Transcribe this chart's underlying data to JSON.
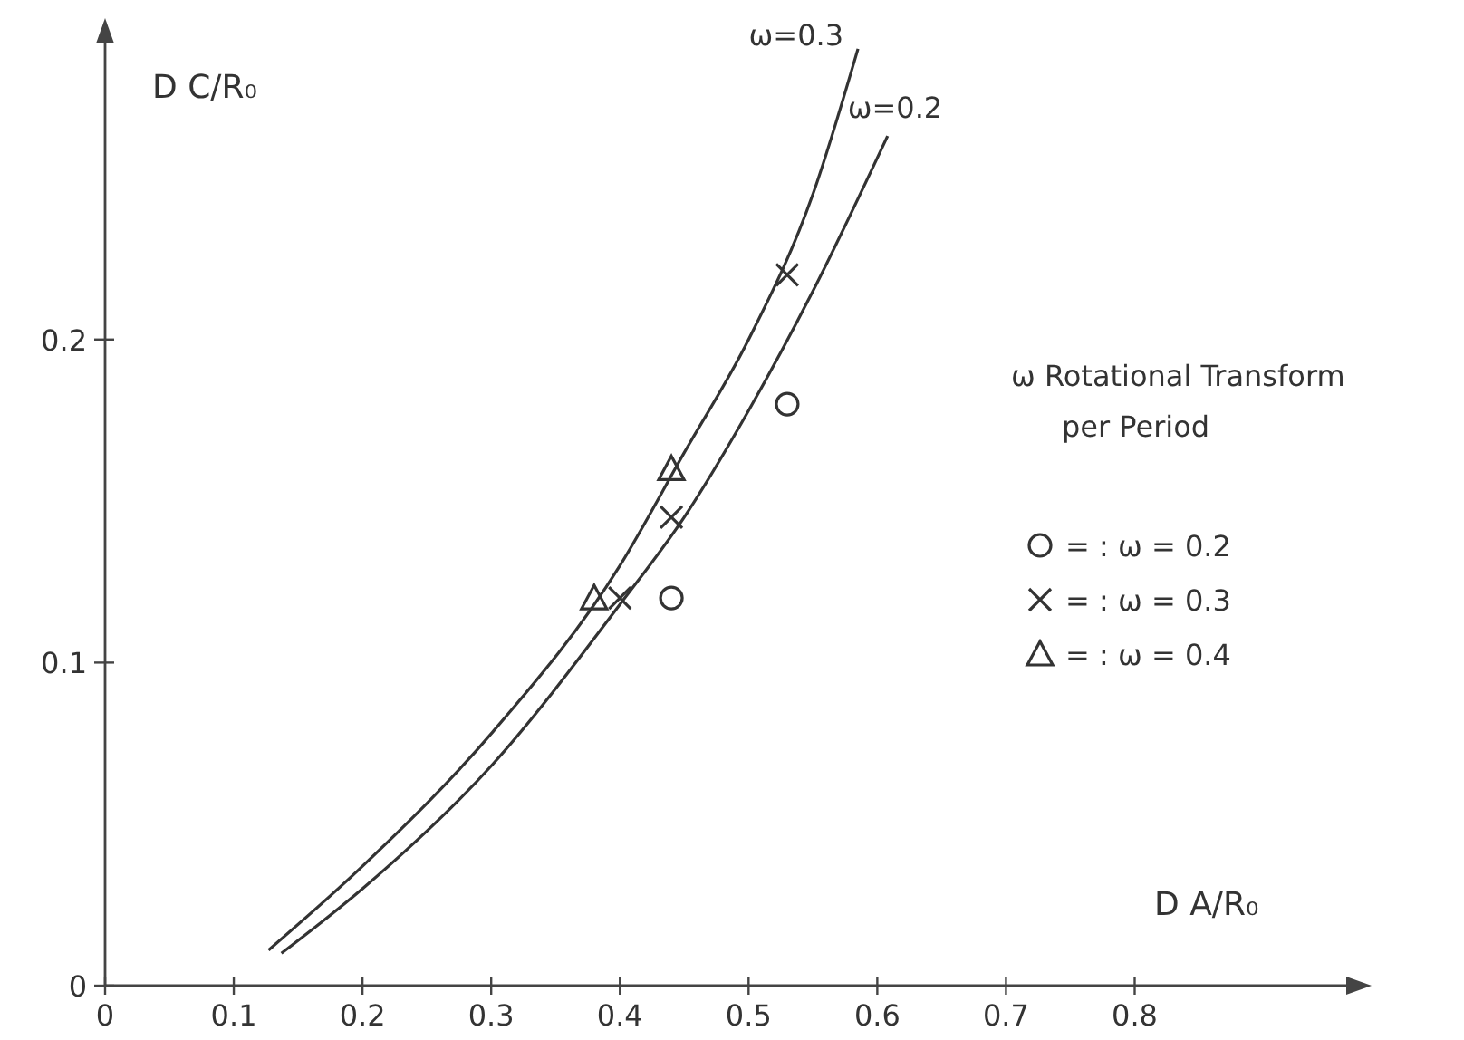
{
  "chart_data": {
    "type": "scatter",
    "xlabel": "D A/R₀",
    "ylabel": "D C/R₀",
    "legend_title": "ω Rotational Transform per Period",
    "legend": "right",
    "grid": false,
    "xlim": [
      0,
      0.97
    ],
    "ylim": [
      0,
      0.295
    ],
    "xticks": [
      0,
      0.1,
      0.2,
      0.3,
      0.4,
      0.5,
      0.6,
      0.7,
      0.8
    ],
    "yticks": [
      0,
      0.1,
      0.2
    ],
    "series": [
      {
        "name": "ω=0.3",
        "type": "line",
        "marker": "none",
        "color": "#333333",
        "x": [
          0.127,
          0.2,
          0.3,
          0.4,
          0.45,
          0.5,
          0.55,
          0.585
        ],
        "values": [
          0.011,
          0.037,
          0.078,
          0.13,
          0.165,
          0.2,
          0.245,
          0.29
        ]
      },
      {
        "name": "ω=0.2",
        "type": "line",
        "marker": "none",
        "color": "#333333",
        "x": [
          0.137,
          0.2,
          0.3,
          0.4,
          0.45,
          0.5,
          0.55,
          0.608
        ],
        "values": [
          0.01,
          0.03,
          0.068,
          0.118,
          0.145,
          0.178,
          0.215,
          0.263
        ]
      },
      {
        "name": "= : ω = 0.2",
        "marker": "circle",
        "color": "#333333",
        "x": [
          0.44,
          0.53
        ],
        "values": [
          0.12,
          0.18
        ]
      },
      {
        "name": "= : ω = 0.3",
        "marker": "cross",
        "color": "#333333",
        "x": [
          0.4,
          0.44,
          0.53
        ],
        "values": [
          0.12,
          0.145,
          0.22
        ]
      },
      {
        "name": "= : ω = 0.4",
        "marker": "triangle",
        "color": "#333333",
        "x": [
          0.38,
          0.44
        ],
        "values": [
          0.12,
          0.16
        ]
      }
    ]
  }
}
